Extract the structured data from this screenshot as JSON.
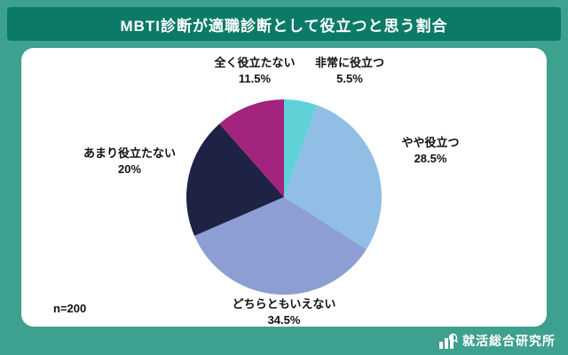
{
  "header": {
    "title": "MBTI診断が適職診断として役立つと思う割合"
  },
  "chart_data": {
    "type": "pie",
    "title": "MBTI診断が適職診断として役立つと思う割合",
    "n_label": "n=200",
    "start_angle_deg": 0,
    "direction": "clockwise",
    "legend_position": "labels-around-pie",
    "slices": [
      {
        "name": "非常に役立つ",
        "pct_label": "5.5%",
        "value": 5.5,
        "color": "#5fd2d8"
      },
      {
        "name": "やや役立つ",
        "pct_label": "28.5%",
        "value": 28.5,
        "color": "#90bee4"
      },
      {
        "name": "どちらともいえない",
        "pct_label": "34.5%",
        "value": 34.5,
        "color": "#8c9ed2"
      },
      {
        "name": "あまり役立たない",
        "pct_label": "20%",
        "value": 20,
        "color": "#1e2245"
      },
      {
        "name": "全く役立たない",
        "pct_label": "11.5%",
        "value": 11.5,
        "color": "#a2247f"
      }
    ]
  },
  "footer": {
    "brand": "就活総合研究所"
  },
  "colors": {
    "background": "#3ea08f",
    "header_bg": "#0b7b68",
    "card_bg": "#ffffff",
    "text": "#111111"
  }
}
